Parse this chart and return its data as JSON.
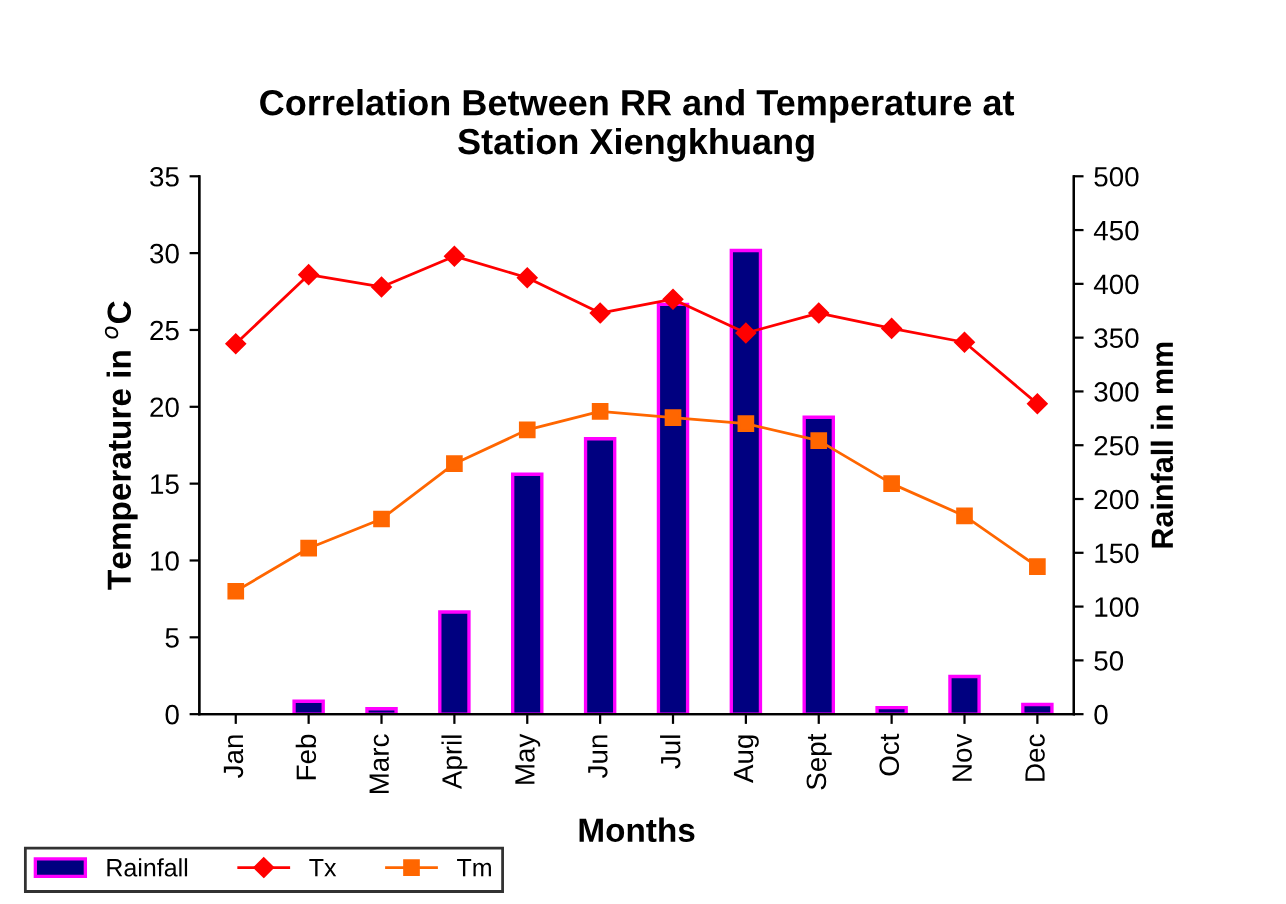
{
  "chart_data": {
    "type": "line",
    "title": "Correlation Between RR and Temperature at\nStation Xiengkhuang",
    "xlabel": "Months",
    "ylabel": "Temperature in $^{o}$C",
    "y2label": "Rainfall in mm",
    "categories": [
      "Jan",
      "Feb",
      "Marc",
      "April",
      "May",
      "Jun",
      "Jul",
      "Aug",
      "Sept",
      "Oct",
      "Nov",
      "Dec"
    ],
    "series": [
      {
        "name": "Rainfall",
        "type": "bar",
        "axis": "y2",
        "color": "#000080",
        "values": [
          null,
          12,
          5,
          95,
          223,
          256,
          381,
          431,
          276,
          6,
          35,
          9
        ]
      },
      {
        "name": "Tx",
        "color": "#ff0000",
        "marker": "diamond",
        "values": [
          24.1,
          28.6,
          27.8,
          29.8,
          28.4,
          26.1,
          27.0,
          24.8,
          26.1,
          25.1,
          24.2,
          20.2
        ]
      },
      {
        "name": "Tm",
        "color": "#ff6600",
        "marker": "square",
        "values": [
          8.0,
          10.8,
          12.7,
          16.3,
          18.5,
          19.7,
          19.3,
          18.9,
          17.8,
          15.0,
          12.9,
          9.6
        ]
      }
    ],
    "ylim": [
      0,
      35
    ],
    "yticks": [
      0,
      5,
      10,
      15,
      20,
      25,
      30,
      35
    ],
    "y2lim": [
      0,
      500
    ],
    "y2ticks": [
      0,
      50,
      100,
      150,
      200,
      250,
      300,
      350,
      400,
      450,
      500
    ],
    "grid": false,
    "legend": "bottom left"
  }
}
